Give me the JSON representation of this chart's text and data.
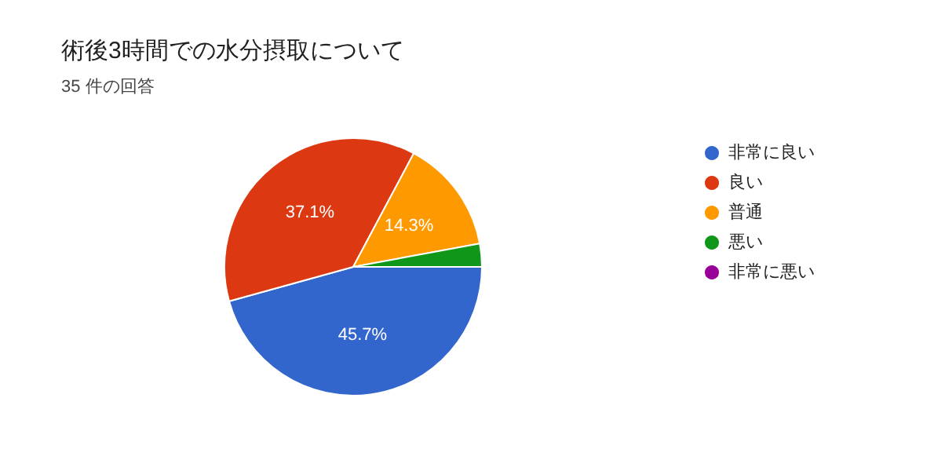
{
  "chart_data": {
    "type": "pie",
    "title": "術後3時間での水分摂取について",
    "subtitle": "35 件の回答",
    "categories": [
      "非常に良い",
      "良い",
      "普通",
      "悪い",
      "非常に悪い"
    ],
    "values": [
      45.7,
      37.1,
      14.3,
      2.9,
      0
    ],
    "colors": [
      "#3366cc",
      "#dc3912",
      "#ff9900",
      "#109618",
      "#990099"
    ],
    "value_labels": [
      "45.7%",
      "37.1%",
      "14.3%",
      null,
      null
    ],
    "legend": "right"
  }
}
